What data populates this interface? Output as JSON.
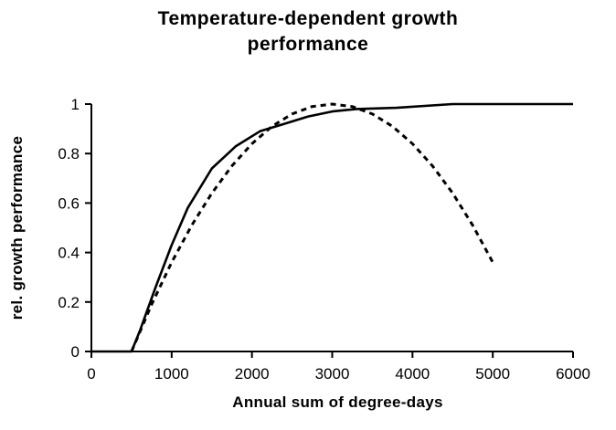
{
  "chart_data": {
    "type": "line",
    "title": "Temperature-dependent growth performance",
    "title_lines": [
      "Temperature-dependent  growth",
      "performance"
    ],
    "xlabel": "Annual  sum  of  degree-days",
    "ylabel": "rel.  growth  performance",
    "xlim": [
      0,
      6000
    ],
    "ylim": [
      0,
      1
    ],
    "x_ticks": [
      0,
      1000,
      2000,
      3000,
      4000,
      5000,
      6000
    ],
    "x_tick_labels": [
      "0",
      "1000",
      "2000",
      "3000",
      "4000",
      "5000",
      "6000"
    ],
    "y_ticks": [
      0,
      0.2,
      0.4,
      0.6,
      0.8,
      1
    ],
    "y_tick_labels": [
      "0",
      "0.2",
      "0.4",
      "0.6",
      "0.8",
      "1"
    ],
    "grid": false,
    "legend": "none",
    "series": [
      {
        "style": "solid",
        "color": "#000000",
        "x": [
          0,
          500,
          600,
          800,
          1000,
          1200,
          1500,
          1800,
          2100,
          2400,
          2700,
          3000,
          3300,
          3800,
          4500,
          6000
        ],
        "y": [
          0,
          0,
          0.08,
          0.26,
          0.43,
          0.58,
          0.74,
          0.83,
          0.89,
          0.92,
          0.95,
          0.97,
          0.98,
          0.985,
          1.0,
          1.0
        ]
      },
      {
        "style": "dashed",
        "color": "#000000",
        "x": [
          500,
          750,
          1000,
          1250,
          1500,
          1750,
          2000,
          2250,
          2500,
          2750,
          3000,
          3250,
          3500,
          3750,
          4000,
          4250,
          4500,
          4750,
          5000
        ],
        "y": [
          0,
          0.19,
          0.36,
          0.51,
          0.64,
          0.75,
          0.84,
          0.91,
          0.96,
          0.99,
          1.0,
          0.99,
          0.96,
          0.91,
          0.84,
          0.75,
          0.64,
          0.51,
          0.36
        ]
      }
    ]
  }
}
